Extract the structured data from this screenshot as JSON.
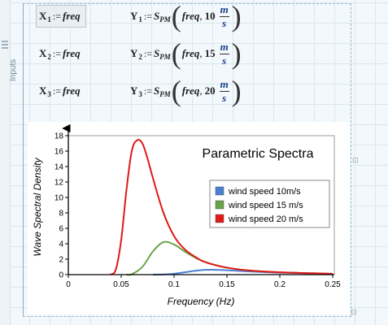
{
  "region": {
    "label": "Inputs"
  },
  "equations": [
    {
      "x_var": "X",
      "x_sub": "1",
      "y_var": "Y",
      "y_sub": "1",
      "rhs_arg": "freq",
      "func": "S",
      "func_sub": "PM",
      "func_arg": "freq",
      "speed": "10",
      "unit_top": "m",
      "unit_bot": "s"
    },
    {
      "x_var": "X",
      "x_sub": "2",
      "y_var": "Y",
      "y_sub": "2",
      "rhs_arg": "freq",
      "func": "S",
      "func_sub": "PM",
      "func_arg": "freq",
      "speed": "15",
      "unit_top": "m",
      "unit_bot": "s"
    },
    {
      "x_var": "X",
      "x_sub": "3",
      "y_var": "Y",
      "y_sub": "3",
      "rhs_arg": "freq",
      "func": "S",
      "func_sub": "PM",
      "func_arg": "freq",
      "speed": "20",
      "unit_top": "m",
      "unit_bot": "s"
    }
  ],
  "assign_symbol": ":=",
  "chart_data": {
    "type": "line",
    "title": "Parametric Spectra",
    "xlabel": "Frequency (Hz)",
    "ylabel": "Wave Spectral Density",
    "xlim": [
      0,
      0.25
    ],
    "ylim": [
      0,
      18
    ],
    "xticks": [
      "0",
      "0.05",
      "0.1",
      "0.15",
      "0.2",
      "0.25"
    ],
    "yticks": [
      "0",
      "2",
      "4",
      "6",
      "8",
      "10",
      "12",
      "14",
      "16",
      "18"
    ],
    "legend_position": "right",
    "grid": false,
    "series": [
      {
        "name": "wind speed 10m/s",
        "color": "#4a7fd4",
        "x": [
          0.08,
          0.09,
          0.1,
          0.11,
          0.12,
          0.13,
          0.14,
          0.15,
          0.17,
          0.2,
          0.25
        ],
        "y": [
          0.0,
          0.02,
          0.12,
          0.3,
          0.5,
          0.62,
          0.62,
          0.56,
          0.42,
          0.25,
          0.1
        ]
      },
      {
        "name": "wind speed 15 m/s",
        "color": "#6aa24a",
        "x": [
          0.055,
          0.06,
          0.07,
          0.08,
          0.09,
          0.1,
          0.11,
          0.12,
          0.13,
          0.15,
          0.17,
          0.2,
          0.25
        ],
        "y": [
          0.0,
          0.05,
          1.0,
          3.0,
          4.2,
          3.9,
          3.0,
          2.2,
          1.6,
          0.9,
          0.55,
          0.3,
          0.1
        ]
      },
      {
        "name": "wind speed 20 m/s",
        "color": "#e01818",
        "x": [
          0.04,
          0.045,
          0.05,
          0.055,
          0.06,
          0.065,
          0.07,
          0.075,
          0.08,
          0.09,
          0.1,
          0.11,
          0.12,
          0.13,
          0.15,
          0.17,
          0.2,
          0.25
        ],
        "y": [
          0.0,
          0.7,
          4.5,
          11.0,
          16.0,
          17.4,
          17.0,
          15.0,
          12.5,
          8.0,
          5.0,
          3.3,
          2.3,
          1.6,
          0.9,
          0.55,
          0.3,
          0.1
        ]
      }
    ]
  }
}
